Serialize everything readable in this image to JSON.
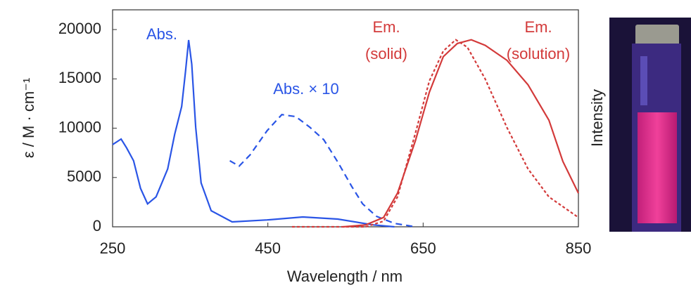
{
  "chart_data": {
    "type": "line",
    "xlabel": "Wavelength / nm",
    "ylabel": "ε / M · cm⁻¹",
    "y2label": "Intensity",
    "xlim": [
      250,
      850
    ],
    "xticks": [
      250,
      450,
      650,
      850
    ],
    "ylim": [
      0,
      22000
    ],
    "yticks": [
      0,
      5000,
      10000,
      15000,
      20000
    ],
    "y2lim": [
      0,
      1.16
    ],
    "annotations": [
      "Abs.",
      "Abs. × 10",
      "Em.",
      "(solid)",
      "Em.",
      "(solution)"
    ],
    "series": [
      {
        "color": "#2a55e6",
        "linestyle": "solid",
        "x": [
          250,
          261,
          268,
          277,
          286,
          295,
          306,
          321,
          330,
          339,
          344,
          348,
          352,
          357,
          364,
          377,
          404,
          449,
          495,
          540,
          585,
          613
        ],
        "values": [
          8340,
          8900,
          8000,
          6700,
          3900,
          2330,
          3040,
          5870,
          9400,
          12200,
          15800,
          18940,
          16500,
          10100,
          4450,
          1630,
          500,
          700,
          1000,
          780,
          200,
          0
        ]
      },
      {
        "color": "#2a55e6",
        "linestyle": "dashed",
        "x": [
          401,
          413,
          427,
          449,
          468,
          486,
          504,
          522,
          540,
          558,
          572,
          590,
          613,
          640
        ],
        "values": [
          6700,
          6150,
          7280,
          9750,
          11380,
          11170,
          10100,
          8830,
          6570,
          4100,
          2330,
          1060,
          350,
          0
        ]
      },
      {
        "color": "#d33a3a",
        "linestyle": "dashed",
        "axis": "y2",
        "x": [
          481,
          576,
          599,
          617,
          640,
          658,
          676,
          692,
          707,
          730,
          758,
          785,
          812,
          850
        ],
        "values": [
          0,
          0,
          0.03,
          0.16,
          0.5,
          0.78,
          0.94,
          1.0,
          0.96,
          0.79,
          0.53,
          0.31,
          0.16,
          0.05
        ]
      },
      {
        "color": "#d33a3a",
        "linestyle": "solid",
        "axis": "y2",
        "x": [
          547,
          576,
          599,
          617,
          640,
          658,
          676,
          694,
          712,
          730,
          758,
          785,
          812,
          830,
          850
        ],
        "values": [
          0,
          0.01,
          0.05,
          0.18,
          0.46,
          0.72,
          0.91,
          0.98,
          1.0,
          0.97,
          0.89,
          0.76,
          0.57,
          0.35,
          0.18
        ]
      }
    ]
  }
}
